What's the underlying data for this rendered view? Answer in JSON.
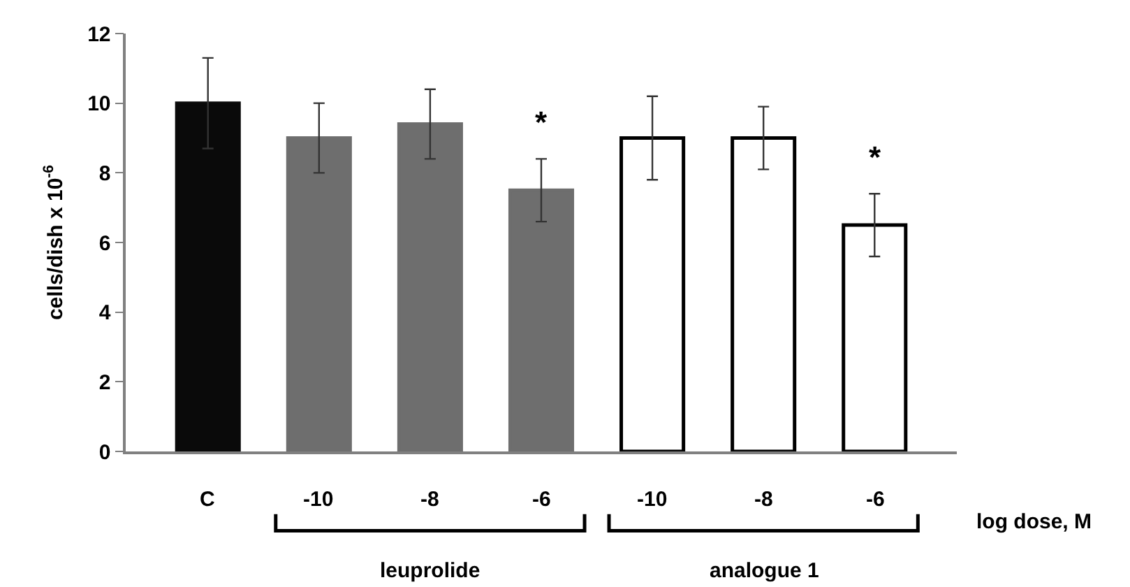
{
  "chart_data": {
    "type": "bar",
    "categories": [
      "C",
      "-10",
      "-8",
      "-6",
      "-10",
      "-8",
      "-6"
    ],
    "values": [
      10,
      9,
      9.4,
      7.5,
      9,
      9,
      6.5
    ],
    "errors": [
      1.3,
      1,
      1,
      0.9,
      1.2,
      0.9,
      0.9
    ],
    "colors": [
      "#0a0a0a",
      "#6e6e6e",
      "#6e6e6e",
      "#6e6e6e",
      "#ffffff",
      "#ffffff",
      "#ffffff"
    ],
    "value_labels": [
      null,
      null,
      null,
      "*",
      null,
      null,
      "*"
    ],
    "ylabel": "cells/dish x 10$^{-6}$",
    "xlabel": "log dose, M",
    "annotations": [
      "leuprolide",
      "analogue 1"
    ],
    "ylim": [
      0,
      12
    ],
    "yticks": [
      0,
      2,
      4,
      6,
      8,
      10,
      12
    ]
  }
}
